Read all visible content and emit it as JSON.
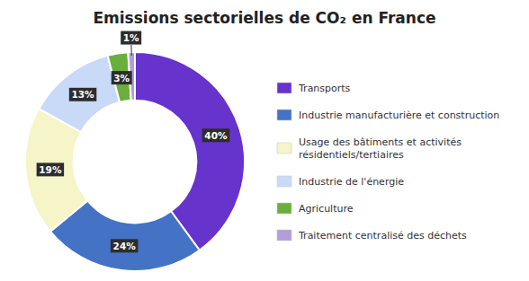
{
  "chart_data": {
    "type": "pie",
    "title": "Emissions sectorielles de CO₂ en France",
    "categories": [
      "Transports",
      "Industrie manufacturière et construction",
      "Usage des bâtiments et activités\nrésidentiels/tertiaires",
      "Industrie de l'énergie",
      "Agriculture",
      "Traitement centralisé des déchets"
    ],
    "values": [
      40,
      24,
      19,
      13,
      3,
      1
    ],
    "value_labels": [
      "40%",
      "24%",
      "19%",
      "13%",
      "3%",
      "1%"
    ],
    "colors": [
      "#6633cc",
      "#4472c4",
      "#f5f5c8",
      "#c9daf8",
      "#6aaf3d",
      "#b39ddb"
    ],
    "data_labels": true,
    "legend": "right"
  }
}
